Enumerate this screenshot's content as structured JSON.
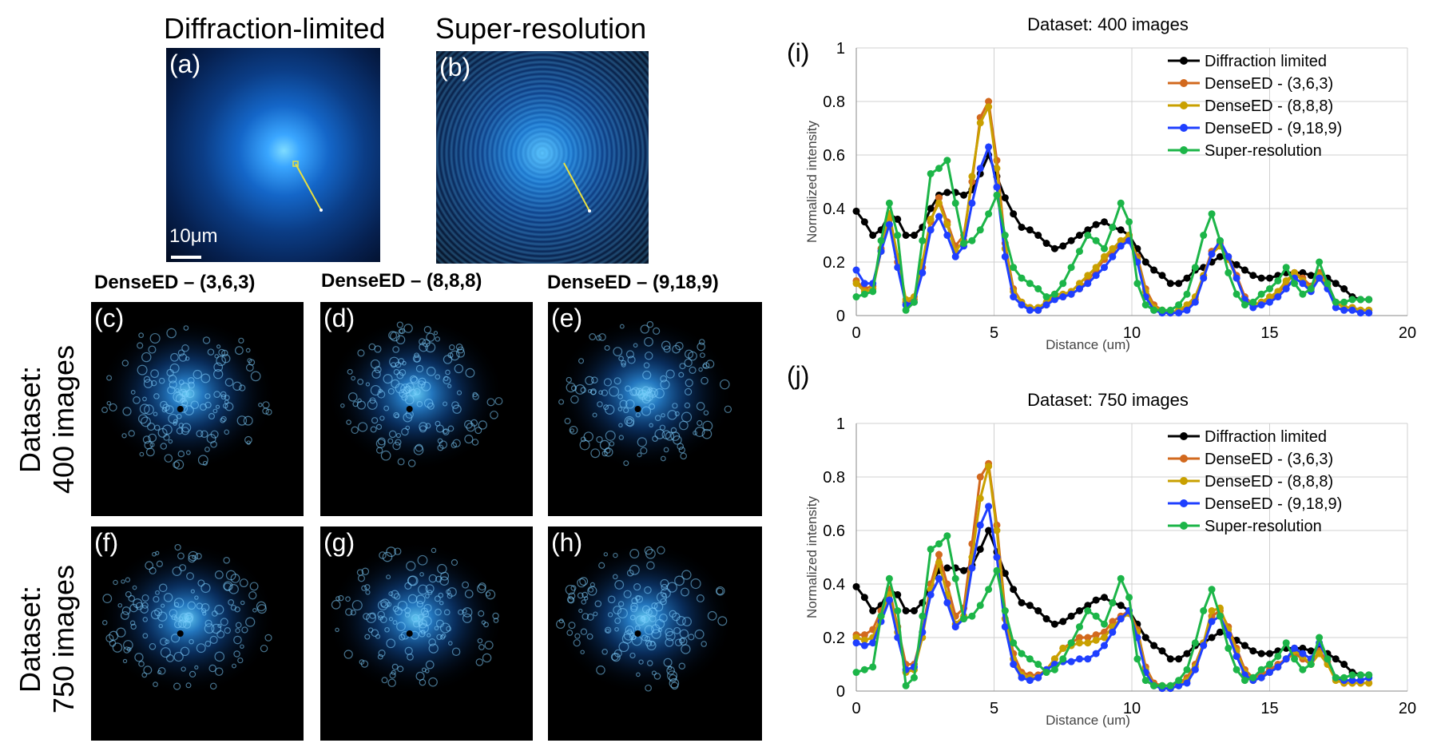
{
  "figure": {
    "panel_a": {
      "letter": "(a)",
      "title": "Diffraction-limited",
      "scale_label": "10μm"
    },
    "panel_b": {
      "letter": "(b)",
      "title": "Super-resolution"
    },
    "col_heads": [
      "DenseED – (3,6,3)",
      "DenseED – (8,8,8)",
      "DenseED – (9,18,9)"
    ],
    "row_heads": [
      "Dataset: 400 images",
      "Dataset: 750 images"
    ],
    "grid_letters": [
      "(c)",
      "(d)",
      "(e)",
      "(f)",
      "(g)",
      "(h)"
    ],
    "chart_letters": [
      "(i)",
      "(j)"
    ]
  },
  "colors": {
    "image_bg": "#000000",
    "diffraction": "#000000",
    "dense363": "#d2691e",
    "dense888": "#c9a000",
    "dense9189": "#1f3fff",
    "super": "#1cb548",
    "grid": "#d0d0d0"
  },
  "chart_data": [
    {
      "type": "line",
      "title": "Dataset: 400 images",
      "xlabel": "Distance (um)",
      "ylabel": "Normalized intensity",
      "xlim": [
        0,
        20
      ],
      "ylim": [
        0,
        1
      ],
      "xticks": [
        0,
        5,
        10,
        15,
        20
      ],
      "yticks": [
        0,
        0.2,
        0.4,
        0.6,
        0.8,
        1
      ],
      "grid": true,
      "legend": "top-right",
      "x": [
        0,
        0.3,
        0.6,
        0.9,
        1.2,
        1.5,
        1.8,
        2.1,
        2.4,
        2.7,
        3.0,
        3.3,
        3.6,
        3.9,
        4.2,
        4.5,
        4.8,
        5.1,
        5.4,
        5.7,
        6.0,
        6.3,
        6.6,
        6.9,
        7.2,
        7.5,
        7.8,
        8.1,
        8.4,
        8.7,
        9.0,
        9.3,
        9.6,
        9.9,
        10.2,
        10.5,
        10.8,
        11.1,
        11.4,
        11.7,
        12.0,
        12.3,
        12.6,
        12.9,
        13.2,
        13.5,
        13.8,
        14.1,
        14.4,
        14.7,
        15.0,
        15.3,
        15.6,
        15.9,
        16.2,
        16.5,
        16.8,
        17.1,
        17.4,
        17.7,
        18.0,
        18.3,
        18.6
      ],
      "series": [
        {
          "name": "Diffraction limited",
          "color": "#000000",
          "values": [
            0.39,
            0.35,
            0.3,
            0.32,
            0.38,
            0.36,
            0.3,
            0.3,
            0.33,
            0.4,
            0.45,
            0.46,
            0.46,
            0.45,
            0.47,
            0.53,
            0.6,
            0.52,
            0.44,
            0.38,
            0.33,
            0.32,
            0.3,
            0.27,
            0.25,
            0.26,
            0.28,
            0.3,
            0.32,
            0.34,
            0.35,
            0.33,
            0.32,
            0.3,
            0.25,
            0.2,
            0.17,
            0.15,
            0.12,
            0.12,
            0.14,
            0.17,
            0.18,
            0.2,
            0.22,
            0.21,
            0.19,
            0.17,
            0.15,
            0.14,
            0.14,
            0.15,
            0.16,
            0.16,
            0.16,
            0.15,
            0.16,
            0.14,
            0.12,
            0.1,
            0.07,
            0.06,
            0.06
          ]
        },
        {
          "name": "DenseED - (3,6,3)",
          "color": "#d2691e",
          "values": [
            0.13,
            0.1,
            0.11,
            0.25,
            0.36,
            0.2,
            0.05,
            0.06,
            0.18,
            0.35,
            0.44,
            0.35,
            0.26,
            0.3,
            0.5,
            0.74,
            0.8,
            0.58,
            0.27,
            0.1,
            0.05,
            0.03,
            0.02,
            0.04,
            0.07,
            0.07,
            0.08,
            0.1,
            0.13,
            0.17,
            0.21,
            0.24,
            0.27,
            0.29,
            0.22,
            0.1,
            0.04,
            0.02,
            0.01,
            0.02,
            0.03,
            0.06,
            0.15,
            0.24,
            0.27,
            0.22,
            0.15,
            0.07,
            0.04,
            0.05,
            0.06,
            0.08,
            0.12,
            0.16,
            0.14,
            0.11,
            0.16,
            0.12,
            0.05,
            0.03,
            0.03,
            0.02,
            0.02
          ]
        },
        {
          "name": "DenseED - (8,8,8)",
          "color": "#c9a000",
          "values": [
            0.12,
            0.09,
            0.1,
            0.24,
            0.38,
            0.22,
            0.06,
            0.07,
            0.2,
            0.36,
            0.42,
            0.34,
            0.24,
            0.28,
            0.52,
            0.72,
            0.78,
            0.55,
            0.25,
            0.09,
            0.05,
            0.03,
            0.03,
            0.05,
            0.08,
            0.08,
            0.09,
            0.12,
            0.15,
            0.18,
            0.22,
            0.25,
            0.28,
            0.3,
            0.21,
            0.09,
            0.03,
            0.02,
            0.01,
            0.02,
            0.04,
            0.07,
            0.15,
            0.23,
            0.26,
            0.21,
            0.14,
            0.06,
            0.04,
            0.05,
            0.07,
            0.09,
            0.13,
            0.16,
            0.13,
            0.1,
            0.15,
            0.11,
            0.05,
            0.03,
            0.03,
            0.02,
            0.02
          ]
        },
        {
          "name": "DenseED - (9,18,9)",
          "color": "#1f3fff",
          "values": [
            0.17,
            0.12,
            0.12,
            0.24,
            0.34,
            0.18,
            0.04,
            0.05,
            0.16,
            0.32,
            0.37,
            0.3,
            0.22,
            0.26,
            0.42,
            0.55,
            0.63,
            0.48,
            0.22,
            0.07,
            0.04,
            0.02,
            0.02,
            0.04,
            0.06,
            0.07,
            0.08,
            0.1,
            0.12,
            0.15,
            0.18,
            0.22,
            0.26,
            0.28,
            0.2,
            0.07,
            0.02,
            0.01,
            0.01,
            0.01,
            0.02,
            0.05,
            0.14,
            0.23,
            0.28,
            0.22,
            0.14,
            0.06,
            0.03,
            0.04,
            0.05,
            0.07,
            0.1,
            0.14,
            0.12,
            0.09,
            0.14,
            0.1,
            0.03,
            0.02,
            0.02,
            0.01,
            0.01
          ]
        },
        {
          "name": "Super-resolution",
          "color": "#1cb548",
          "values": [
            0.07,
            0.08,
            0.09,
            0.28,
            0.42,
            0.3,
            0.02,
            0.05,
            0.28,
            0.53,
            0.55,
            0.58,
            0.42,
            0.27,
            0.28,
            0.32,
            0.38,
            0.45,
            0.3,
            0.18,
            0.14,
            0.12,
            0.1,
            0.07,
            0.08,
            0.12,
            0.18,
            0.24,
            0.3,
            0.28,
            0.25,
            0.33,
            0.42,
            0.35,
            0.12,
            0.04,
            0.02,
            0.02,
            0.02,
            0.04,
            0.08,
            0.18,
            0.3,
            0.38,
            0.28,
            0.16,
            0.08,
            0.04,
            0.05,
            0.08,
            0.1,
            0.13,
            0.18,
            0.12,
            0.08,
            0.1,
            0.2,
            0.12,
            0.05,
            0.05,
            0.06,
            0.06,
            0.06
          ]
        }
      ]
    },
    {
      "type": "line",
      "title": "Dataset: 750 images",
      "xlabel": "Distance (um)",
      "ylabel": "Normalized intensity",
      "xlim": [
        0,
        20
      ],
      "ylim": [
        0,
        1
      ],
      "xticks": [
        0,
        5,
        10,
        15,
        20
      ],
      "yticks": [
        0,
        0.2,
        0.4,
        0.6,
        0.8,
        1
      ],
      "grid": true,
      "legend": "top-right",
      "x": [
        0,
        0.3,
        0.6,
        0.9,
        1.2,
        1.5,
        1.8,
        2.1,
        2.4,
        2.7,
        3.0,
        3.3,
        3.6,
        3.9,
        4.2,
        4.5,
        4.8,
        5.1,
        5.4,
        5.7,
        6.0,
        6.3,
        6.6,
        6.9,
        7.2,
        7.5,
        7.8,
        8.1,
        8.4,
        8.7,
        9.0,
        9.3,
        9.6,
        9.9,
        10.2,
        10.5,
        10.8,
        11.1,
        11.4,
        11.7,
        12.0,
        12.3,
        12.6,
        12.9,
        13.2,
        13.5,
        13.8,
        14.1,
        14.4,
        14.7,
        15.0,
        15.3,
        15.6,
        15.9,
        16.2,
        16.5,
        16.8,
        17.1,
        17.4,
        17.7,
        18.0,
        18.3,
        18.6
      ],
      "series": [
        {
          "name": "Diffraction limited",
          "color": "#000000",
          "values": [
            0.39,
            0.35,
            0.3,
            0.32,
            0.38,
            0.36,
            0.3,
            0.3,
            0.33,
            0.4,
            0.45,
            0.46,
            0.46,
            0.45,
            0.47,
            0.53,
            0.6,
            0.52,
            0.44,
            0.38,
            0.33,
            0.32,
            0.3,
            0.27,
            0.25,
            0.26,
            0.28,
            0.3,
            0.32,
            0.34,
            0.35,
            0.33,
            0.32,
            0.3,
            0.25,
            0.2,
            0.17,
            0.15,
            0.12,
            0.12,
            0.14,
            0.17,
            0.18,
            0.2,
            0.22,
            0.21,
            0.19,
            0.17,
            0.15,
            0.14,
            0.14,
            0.15,
            0.16,
            0.16,
            0.16,
            0.15,
            0.16,
            0.14,
            0.12,
            0.1,
            0.07,
            0.06,
            0.06
          ]
        },
        {
          "name": "DenseED - (3,6,3)",
          "color": "#d2691e",
          "values": [
            0.21,
            0.21,
            0.23,
            0.3,
            0.38,
            0.24,
            0.1,
            0.1,
            0.22,
            0.4,
            0.51,
            0.4,
            0.28,
            0.31,
            0.55,
            0.8,
            0.85,
            0.62,
            0.3,
            0.14,
            0.07,
            0.06,
            0.06,
            0.08,
            0.12,
            0.16,
            0.18,
            0.2,
            0.2,
            0.21,
            0.22,
            0.26,
            0.28,
            0.3,
            0.23,
            0.09,
            0.03,
            0.02,
            0.02,
            0.03,
            0.05,
            0.1,
            0.18,
            0.28,
            0.3,
            0.24,
            0.16,
            0.08,
            0.05,
            0.06,
            0.08,
            0.1,
            0.12,
            0.14,
            0.12,
            0.1,
            0.15,
            0.11,
            0.05,
            0.03,
            0.03,
            0.03,
            0.03
          ]
        },
        {
          "name": "DenseED - (8,8,8)",
          "color": "#c9a000",
          "values": [
            0.2,
            0.19,
            0.2,
            0.28,
            0.36,
            0.22,
            0.07,
            0.08,
            0.2,
            0.38,
            0.48,
            0.36,
            0.25,
            0.28,
            0.5,
            0.72,
            0.84,
            0.6,
            0.27,
            0.12,
            0.06,
            0.05,
            0.05,
            0.08,
            0.12,
            0.16,
            0.17,
            0.18,
            0.18,
            0.19,
            0.2,
            0.24,
            0.27,
            0.29,
            0.22,
            0.08,
            0.02,
            0.01,
            0.01,
            0.02,
            0.04,
            0.09,
            0.18,
            0.3,
            0.31,
            0.23,
            0.15,
            0.07,
            0.04,
            0.05,
            0.07,
            0.09,
            0.12,
            0.15,
            0.13,
            0.1,
            0.14,
            0.1,
            0.04,
            0.03,
            0.03,
            0.03,
            0.03
          ]
        },
        {
          "name": "DenseED - (9,18,9)",
          "color": "#1f3fff",
          "values": [
            0.18,
            0.17,
            0.18,
            0.26,
            0.34,
            0.2,
            0.08,
            0.09,
            0.22,
            0.36,
            0.42,
            0.33,
            0.24,
            0.27,
            0.46,
            0.62,
            0.69,
            0.5,
            0.24,
            0.1,
            0.05,
            0.04,
            0.05,
            0.08,
            0.1,
            0.11,
            0.11,
            0.12,
            0.12,
            0.14,
            0.17,
            0.22,
            0.27,
            0.3,
            0.2,
            0.07,
            0.02,
            0.01,
            0.01,
            0.02,
            0.03,
            0.08,
            0.17,
            0.26,
            0.28,
            0.21,
            0.13,
            0.06,
            0.04,
            0.05,
            0.07,
            0.09,
            0.12,
            0.16,
            0.14,
            0.12,
            0.18,
            0.12,
            0.05,
            0.04,
            0.04,
            0.04,
            0.05
          ]
        },
        {
          "name": "Super-resolution",
          "color": "#1cb548",
          "values": [
            0.07,
            0.08,
            0.09,
            0.28,
            0.42,
            0.3,
            0.02,
            0.05,
            0.28,
            0.53,
            0.55,
            0.58,
            0.42,
            0.27,
            0.28,
            0.32,
            0.38,
            0.45,
            0.3,
            0.18,
            0.14,
            0.12,
            0.1,
            0.07,
            0.08,
            0.12,
            0.18,
            0.24,
            0.3,
            0.28,
            0.25,
            0.33,
            0.42,
            0.35,
            0.12,
            0.04,
            0.02,
            0.02,
            0.02,
            0.04,
            0.08,
            0.18,
            0.3,
            0.38,
            0.28,
            0.16,
            0.08,
            0.04,
            0.05,
            0.08,
            0.1,
            0.13,
            0.18,
            0.12,
            0.08,
            0.1,
            0.2,
            0.12,
            0.05,
            0.05,
            0.06,
            0.06,
            0.06
          ]
        }
      ]
    }
  ]
}
